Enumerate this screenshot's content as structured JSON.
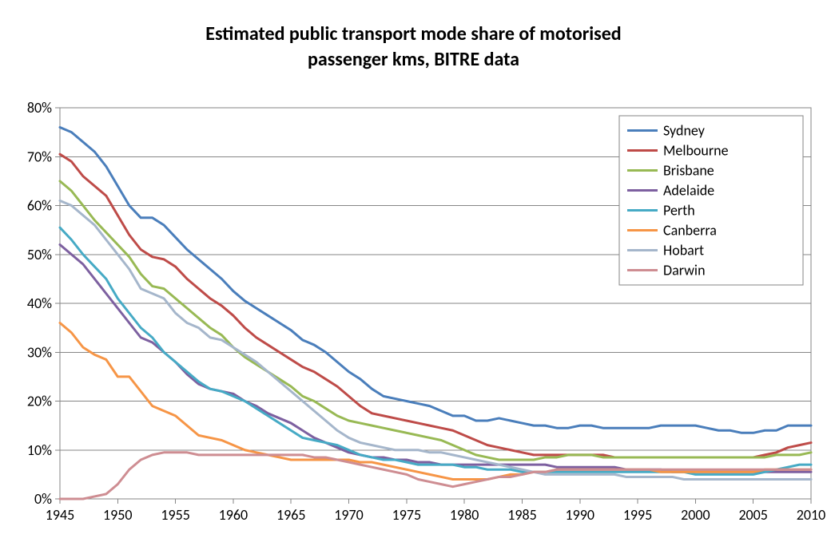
{
  "chart": {
    "type": "line",
    "title_line1": "Estimated public transport mode share of motorised",
    "title_line2": "passenger kms, BITRE data",
    "title_fontsize": 24,
    "title_fontweight": "bold",
    "background_color": "#ffffff",
    "plot_background_color": "#ffffff",
    "plot_border_color": "#868686",
    "axis_line_color": "#868686",
    "grid_color": "#868686",
    "grid_on": true,
    "tick_label_fontsize": 18,
    "legend_fontsize": 18,
    "legend_border_color": "#868686",
    "legend_bg": "#ffffff",
    "line_width": 3,
    "x": {
      "min": 1945,
      "max": 2010,
      "tick_step": 5,
      "ticks": [
        1945,
        1950,
        1955,
        1960,
        1965,
        1970,
        1975,
        1980,
        1985,
        1990,
        1995,
        2000,
        2005,
        2010
      ]
    },
    "y": {
      "min": 0,
      "max": 80,
      "tick_step": 10,
      "ticks": [
        0,
        10,
        20,
        30,
        40,
        50,
        60,
        70,
        80
      ],
      "tick_labels": [
        "0%",
        "10%",
        "20%",
        "30%",
        "40%",
        "50%",
        "60%",
        "70%",
        "80%"
      ]
    },
    "years": [
      1945,
      1946,
      1947,
      1948,
      1949,
      1950,
      1951,
      1952,
      1953,
      1954,
      1955,
      1956,
      1957,
      1958,
      1959,
      1960,
      1961,
      1962,
      1963,
      1964,
      1965,
      1966,
      1967,
      1968,
      1969,
      1970,
      1971,
      1972,
      1973,
      1974,
      1975,
      1976,
      1977,
      1978,
      1979,
      1980,
      1981,
      1982,
      1983,
      1984,
      1985,
      1986,
      1987,
      1988,
      1989,
      1990,
      1991,
      1992,
      1993,
      1994,
      1995,
      1996,
      1997,
      1998,
      1999,
      2000,
      2001,
      2002,
      2003,
      2004,
      2005,
      2006,
      2007,
      2008,
      2009,
      2010
    ],
    "series": [
      {
        "name": "Sydney",
        "color": "#4a7ebb",
        "values": [
          76,
          75,
          73,
          71,
          68,
          64,
          60,
          57.5,
          57.5,
          56,
          53.5,
          51,
          49,
          47,
          45,
          42.5,
          40.5,
          39,
          37.5,
          36,
          34.5,
          32.5,
          31.5,
          30,
          28,
          26,
          24.5,
          22.5,
          21,
          20.5,
          20,
          19.5,
          19,
          18,
          17,
          17,
          16,
          16,
          16.5,
          16,
          15.5,
          15,
          15,
          14.5,
          14.5,
          15,
          15,
          14.5,
          14.5,
          14.5,
          14.5,
          14.5,
          15,
          15,
          15,
          15,
          14.5,
          14,
          14,
          13.5,
          13.5,
          14,
          14,
          15,
          15,
          15
        ]
      },
      {
        "name": "Melbourne",
        "color": "#be4b48",
        "values": [
          70.5,
          69,
          66,
          64,
          62,
          58,
          54,
          51,
          49.5,
          49,
          47.5,
          45,
          43,
          41,
          39.5,
          37.5,
          35,
          33,
          31.5,
          30,
          28.5,
          27,
          26,
          24.5,
          23,
          21,
          19,
          17.5,
          17,
          16.5,
          16,
          15.5,
          15,
          14.5,
          14,
          13,
          12,
          11,
          10.5,
          10,
          9.5,
          9,
          9,
          9,
          9,
          9,
          9,
          9,
          8.5,
          8.5,
          8.5,
          8.5,
          8.5,
          8.5,
          8.5,
          8.5,
          8.5,
          8.5,
          8.5,
          8.5,
          8.5,
          9,
          9.5,
          10.5,
          11,
          11.5
        ]
      },
      {
        "name": "Brisbane",
        "color": "#98b954",
        "values": [
          65,
          63,
          60,
          57,
          54.5,
          52,
          49.5,
          46,
          43.5,
          43,
          41,
          39,
          37,
          35,
          33.5,
          31,
          29,
          27.5,
          26,
          24.5,
          23,
          21,
          20,
          18.5,
          17,
          16,
          15.5,
          15,
          14.5,
          14,
          13.5,
          13,
          12.5,
          12,
          11,
          10,
          9,
          8.5,
          8,
          8,
          8,
          8,
          8.5,
          8.5,
          9,
          9,
          9,
          8.5,
          8.5,
          8.5,
          8.5,
          8.5,
          8.5,
          8.5,
          8.5,
          8.5,
          8.5,
          8.5,
          8.5,
          8.5,
          8.5,
          8.5,
          9,
          9,
          9,
          9.5
        ]
      },
      {
        "name": "Adelaide",
        "color": "#7d60a0",
        "values": [
          52,
          50,
          48,
          45,
          42,
          39,
          36,
          33,
          32,
          30,
          28,
          25.5,
          23.5,
          22.5,
          22,
          21.5,
          20,
          19,
          17.5,
          16.5,
          15.5,
          14,
          12.5,
          11.5,
          10.5,
          9.5,
          9,
          8.5,
          8.5,
          8,
          8,
          7.5,
          7.5,
          7,
          7,
          7,
          7,
          7,
          7,
          7,
          7,
          7,
          7,
          6.5,
          6.5,
          6.5,
          6.5,
          6.5,
          6.5,
          6,
          6,
          6,
          6,
          5.5,
          5.5,
          5.5,
          5.5,
          5.5,
          5.5,
          5.5,
          5.5,
          5.5,
          5.5,
          5.5,
          5.5,
          5.5
        ]
      },
      {
        "name": "Perth",
        "color": "#46aac5",
        "values": [
          55.5,
          53,
          50,
          47.5,
          45,
          41,
          38,
          35,
          33,
          30,
          28,
          26,
          24,
          22.5,
          22,
          21,
          20,
          18.5,
          17,
          15.5,
          14,
          12.5,
          12,
          11.5,
          11,
          10,
          9,
          8.5,
          8,
          8,
          7.5,
          7,
          7,
          7,
          7,
          6.5,
          6.5,
          6,
          6,
          6,
          5.5,
          5.5,
          5.5,
          5.5,
          5.5,
          5.5,
          5.5,
          5.5,
          5.5,
          5.5,
          5.5,
          5.5,
          5.5,
          5.5,
          5.5,
          5,
          5,
          5,
          5,
          5,
          5,
          5.5,
          6,
          6.5,
          7,
          7
        ]
      },
      {
        "name": "Canberra",
        "color": "#f69546",
        "values": [
          36,
          34,
          31,
          29.5,
          28.5,
          25,
          25,
          22,
          19,
          18,
          17,
          15,
          13,
          12.5,
          12,
          11,
          10,
          9.5,
          9,
          8.5,
          8,
          8,
          8,
          8,
          8,
          8,
          7.5,
          7.5,
          7,
          6.5,
          6,
          5.5,
          5,
          4.5,
          4,
          4,
          4,
          4,
          4.5,
          5,
          5,
          5.5,
          5.5,
          6,
          6,
          6,
          6,
          6,
          6,
          6,
          6,
          6,
          5.5,
          5.5,
          5.5,
          5.5,
          5.5,
          5.5,
          5.5,
          5.5,
          5.5,
          6,
          6,
          6,
          6,
          6
        ]
      },
      {
        "name": "Hobart",
        "color": "#a5b6cb",
        "values": [
          61,
          60,
          58,
          56,
          53,
          50,
          47,
          43,
          42,
          41,
          38,
          36,
          35,
          33,
          32.5,
          31,
          29.5,
          28,
          26,
          24,
          22,
          20,
          18,
          16,
          14,
          12.5,
          11.5,
          11,
          10.5,
          10,
          10,
          10,
          9.5,
          9.5,
          9,
          8.5,
          8,
          7.5,
          7,
          6.5,
          6,
          5.5,
          5,
          5,
          5,
          5,
          5,
          5,
          5,
          4.5,
          4.5,
          4.5,
          4.5,
          4.5,
          4,
          4,
          4,
          4,
          4,
          4,
          4,
          4,
          4,
          4,
          4,
          4
        ]
      },
      {
        "name": "Darwin",
        "color": "#ce8d92",
        "values": [
          0,
          0,
          0,
          0.5,
          1,
          3,
          6,
          8,
          9,
          9.5,
          9.5,
          9.5,
          9,
          9,
          9,
          9,
          9,
          9,
          9,
          9,
          9,
          9,
          8.5,
          8.5,
          8,
          7.5,
          7,
          6.5,
          6,
          5.5,
          5,
          4,
          3.5,
          3,
          2.5,
          3,
          3.5,
          4,
          4.5,
          4.5,
          5,
          5.5,
          5.5,
          6,
          6,
          6,
          6,
          6,
          6,
          6,
          6,
          6,
          6,
          6,
          6,
          6,
          6,
          6,
          6,
          6,
          6,
          6,
          6,
          6,
          6,
          6
        ]
      }
    ]
  }
}
